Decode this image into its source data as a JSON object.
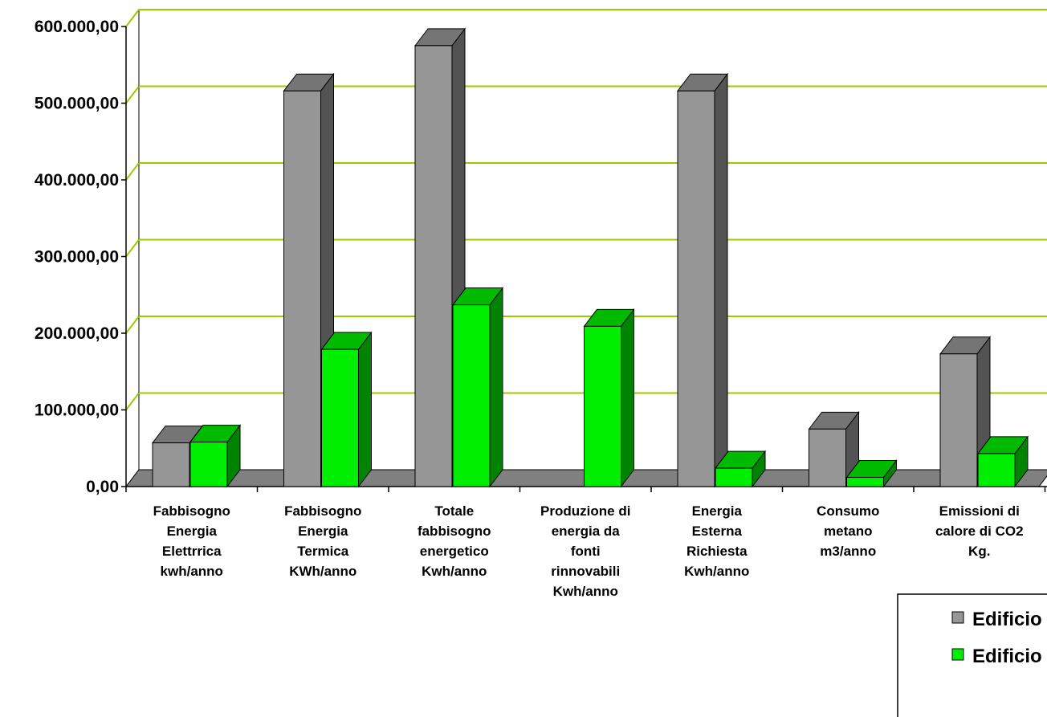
{
  "chart_data": {
    "type": "bar",
    "categories": [
      [
        "Fabbisogno",
        "Energia",
        "Elettrrica",
        "kwh/anno"
      ],
      [
        "Fabbisogno",
        "Energia",
        "Termica",
        "KWh/anno"
      ],
      [
        "Totale",
        "fabbisogno",
        "energetico",
        "Kwh/anno"
      ],
      [
        "Produzione di",
        "energia da",
        "fonti",
        "rinnovabili",
        "Kwh/anno"
      ],
      [
        "Energia",
        "Esterna",
        "Richiesta",
        "Kwh/anno"
      ],
      [
        "Consumo",
        "metano",
        "m3/anno"
      ],
      [
        "Emissioni di",
        "calore di CO2",
        "Kg."
      ]
    ],
    "series": [
      {
        "name": "Edificio",
        "color": "#969696",
        "values": [
          57000,
          516000,
          575000,
          0,
          516000,
          75000,
          173000
        ]
      },
      {
        "name": "Edificio",
        "color": "#00ee00",
        "values": [
          58000,
          179000,
          237000,
          209000,
          24000,
          12000,
          43000
        ]
      }
    ],
    "y_ticks": [
      "0,00",
      "100.000,00",
      "200.000,00",
      "300.000,00",
      "400.000,00",
      "500.000,00",
      "600.000,00"
    ],
    "ylim": [
      0,
      600000
    ],
    "grid": true,
    "gridline_color": "#99cc00",
    "legend_position": "bottom-right",
    "title": "",
    "xlabel": "",
    "ylabel": ""
  }
}
